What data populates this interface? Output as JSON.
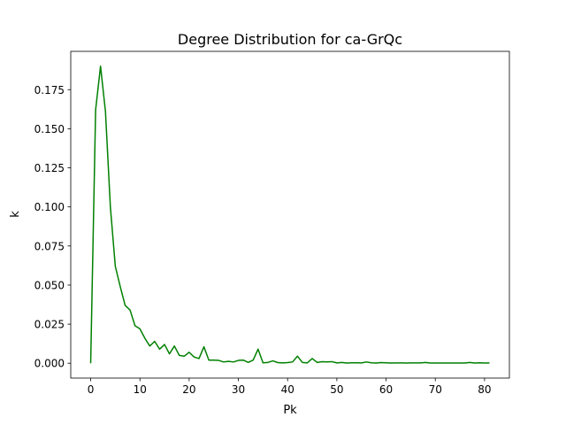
{
  "chart_data": {
    "type": "line",
    "title": "Degree Distribution for ca-GrQc",
    "xlabel": "Pk",
    "ylabel": "k",
    "xlim": [
      -4.05,
      85.05
    ],
    "ylim": [
      -0.0095,
      0.1995
    ],
    "xticks": [
      0,
      10,
      20,
      30,
      40,
      50,
      60,
      70,
      80
    ],
    "yticks": [
      0.0,
      0.025,
      0.05,
      0.075,
      0.1,
      0.125,
      0.15,
      0.175
    ],
    "ytick_labels": [
      "0.000",
      "0.025",
      "0.050",
      "0.075",
      "0.100",
      "0.125",
      "0.150",
      "0.175"
    ],
    "grid": false,
    "series": [
      {
        "color": "#008000",
        "x": [
          0,
          1,
          2,
          3,
          4,
          5,
          6,
          7,
          8,
          9,
          10,
          11,
          12,
          13,
          14,
          15,
          16,
          17,
          18,
          19,
          20,
          21,
          22,
          23,
          24,
          25,
          26,
          27,
          28,
          29,
          30,
          31,
          32,
          33,
          34,
          35,
          36,
          37,
          38,
          39,
          40,
          41,
          42,
          43,
          44,
          45,
          46,
          47,
          48,
          49,
          50,
          51,
          52,
          53,
          54,
          55,
          56,
          57,
          58,
          59,
          60,
          61,
          62,
          63,
          64,
          65,
          66,
          67,
          68,
          69,
          70,
          71,
          72,
          73,
          74,
          75,
          76,
          77,
          78,
          79,
          80,
          81
        ],
        "y": [
          0.0,
          0.162,
          0.19,
          0.161,
          0.1,
          0.062,
          0.049,
          0.037,
          0.034,
          0.024,
          0.022,
          0.016,
          0.011,
          0.014,
          0.009,
          0.012,
          0.006,
          0.011,
          0.005,
          0.0045,
          0.007,
          0.004,
          0.003,
          0.0105,
          0.002,
          0.002,
          0.0018,
          0.0008,
          0.0012,
          0.0008,
          0.0018,
          0.002,
          0.0005,
          0.002,
          0.009,
          0.0003,
          0.0005,
          0.0015,
          0.0004,
          0.0002,
          0.0004,
          0.0008,
          0.0045,
          0.0005,
          0.0002,
          0.003,
          0.0005,
          0.001,
          0.0008,
          0.001,
          0.0002,
          0.0005,
          0.0001,
          0.0003,
          0.0003,
          0.0002,
          0.0008,
          0.0003,
          0.0001,
          0.0004,
          0.0003,
          0.0001,
          0.0002,
          0.0002,
          0.0001,
          0.0002,
          0.0002,
          0.0002,
          0.0005,
          0.0001,
          0.0001,
          0.0001,
          0.0001,
          0.0001,
          0.0001,
          0.0001,
          0.0001,
          0.0005,
          0.0001,
          0.0003,
          0.0001,
          0.0002
        ]
      }
    ]
  }
}
